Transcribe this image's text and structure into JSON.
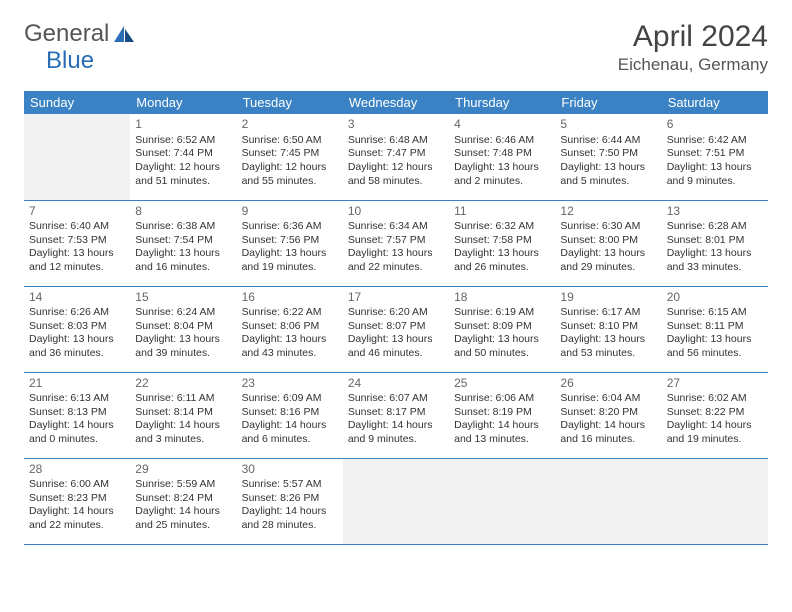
{
  "logo": {
    "part1": "General",
    "part2": "Blue"
  },
  "title": "April 2024",
  "location": "Eichenau, Germany",
  "colors": {
    "header_bg": "#3b82c4",
    "header_text": "#ffffff",
    "text": "#333333",
    "muted": "#666666",
    "logo_gray": "#555555",
    "logo_blue": "#2a6db5",
    "border": "#3b82c4",
    "empty_bg": "#f2f2f2",
    "page_bg": "#ffffff"
  },
  "day_headers": [
    "Sunday",
    "Monday",
    "Tuesday",
    "Wednesday",
    "Thursday",
    "Friday",
    "Saturday"
  ],
  "weeks": [
    [
      null,
      {
        "n": "1",
        "sr": "Sunrise: 6:52 AM",
        "ss": "Sunset: 7:44 PM",
        "dl": "Daylight: 12 hours and 51 minutes."
      },
      {
        "n": "2",
        "sr": "Sunrise: 6:50 AM",
        "ss": "Sunset: 7:45 PM",
        "dl": "Daylight: 12 hours and 55 minutes."
      },
      {
        "n": "3",
        "sr": "Sunrise: 6:48 AM",
        "ss": "Sunset: 7:47 PM",
        "dl": "Daylight: 12 hours and 58 minutes."
      },
      {
        "n": "4",
        "sr": "Sunrise: 6:46 AM",
        "ss": "Sunset: 7:48 PM",
        "dl": "Daylight: 13 hours and 2 minutes."
      },
      {
        "n": "5",
        "sr": "Sunrise: 6:44 AM",
        "ss": "Sunset: 7:50 PM",
        "dl": "Daylight: 13 hours and 5 minutes."
      },
      {
        "n": "6",
        "sr": "Sunrise: 6:42 AM",
        "ss": "Sunset: 7:51 PM",
        "dl": "Daylight: 13 hours and 9 minutes."
      }
    ],
    [
      {
        "n": "7",
        "sr": "Sunrise: 6:40 AM",
        "ss": "Sunset: 7:53 PM",
        "dl": "Daylight: 13 hours and 12 minutes."
      },
      {
        "n": "8",
        "sr": "Sunrise: 6:38 AM",
        "ss": "Sunset: 7:54 PM",
        "dl": "Daylight: 13 hours and 16 minutes."
      },
      {
        "n": "9",
        "sr": "Sunrise: 6:36 AM",
        "ss": "Sunset: 7:56 PM",
        "dl": "Daylight: 13 hours and 19 minutes."
      },
      {
        "n": "10",
        "sr": "Sunrise: 6:34 AM",
        "ss": "Sunset: 7:57 PM",
        "dl": "Daylight: 13 hours and 22 minutes."
      },
      {
        "n": "11",
        "sr": "Sunrise: 6:32 AM",
        "ss": "Sunset: 7:58 PM",
        "dl": "Daylight: 13 hours and 26 minutes."
      },
      {
        "n": "12",
        "sr": "Sunrise: 6:30 AM",
        "ss": "Sunset: 8:00 PM",
        "dl": "Daylight: 13 hours and 29 minutes."
      },
      {
        "n": "13",
        "sr": "Sunrise: 6:28 AM",
        "ss": "Sunset: 8:01 PM",
        "dl": "Daylight: 13 hours and 33 minutes."
      }
    ],
    [
      {
        "n": "14",
        "sr": "Sunrise: 6:26 AM",
        "ss": "Sunset: 8:03 PM",
        "dl": "Daylight: 13 hours and 36 minutes."
      },
      {
        "n": "15",
        "sr": "Sunrise: 6:24 AM",
        "ss": "Sunset: 8:04 PM",
        "dl": "Daylight: 13 hours and 39 minutes."
      },
      {
        "n": "16",
        "sr": "Sunrise: 6:22 AM",
        "ss": "Sunset: 8:06 PM",
        "dl": "Daylight: 13 hours and 43 minutes."
      },
      {
        "n": "17",
        "sr": "Sunrise: 6:20 AM",
        "ss": "Sunset: 8:07 PM",
        "dl": "Daylight: 13 hours and 46 minutes."
      },
      {
        "n": "18",
        "sr": "Sunrise: 6:19 AM",
        "ss": "Sunset: 8:09 PM",
        "dl": "Daylight: 13 hours and 50 minutes."
      },
      {
        "n": "19",
        "sr": "Sunrise: 6:17 AM",
        "ss": "Sunset: 8:10 PM",
        "dl": "Daylight: 13 hours and 53 minutes."
      },
      {
        "n": "20",
        "sr": "Sunrise: 6:15 AM",
        "ss": "Sunset: 8:11 PM",
        "dl": "Daylight: 13 hours and 56 minutes."
      }
    ],
    [
      {
        "n": "21",
        "sr": "Sunrise: 6:13 AM",
        "ss": "Sunset: 8:13 PM",
        "dl": "Daylight: 14 hours and 0 minutes."
      },
      {
        "n": "22",
        "sr": "Sunrise: 6:11 AM",
        "ss": "Sunset: 8:14 PM",
        "dl": "Daylight: 14 hours and 3 minutes."
      },
      {
        "n": "23",
        "sr": "Sunrise: 6:09 AM",
        "ss": "Sunset: 8:16 PM",
        "dl": "Daylight: 14 hours and 6 minutes."
      },
      {
        "n": "24",
        "sr": "Sunrise: 6:07 AM",
        "ss": "Sunset: 8:17 PM",
        "dl": "Daylight: 14 hours and 9 minutes."
      },
      {
        "n": "25",
        "sr": "Sunrise: 6:06 AM",
        "ss": "Sunset: 8:19 PM",
        "dl": "Daylight: 14 hours and 13 minutes."
      },
      {
        "n": "26",
        "sr": "Sunrise: 6:04 AM",
        "ss": "Sunset: 8:20 PM",
        "dl": "Daylight: 14 hours and 16 minutes."
      },
      {
        "n": "27",
        "sr": "Sunrise: 6:02 AM",
        "ss": "Sunset: 8:22 PM",
        "dl": "Daylight: 14 hours and 19 minutes."
      }
    ],
    [
      {
        "n": "28",
        "sr": "Sunrise: 6:00 AM",
        "ss": "Sunset: 8:23 PM",
        "dl": "Daylight: 14 hours and 22 minutes."
      },
      {
        "n": "29",
        "sr": "Sunrise: 5:59 AM",
        "ss": "Sunset: 8:24 PM",
        "dl": "Daylight: 14 hours and 25 minutes."
      },
      {
        "n": "30",
        "sr": "Sunrise: 5:57 AM",
        "ss": "Sunset: 8:26 PM",
        "dl": "Daylight: 14 hours and 28 minutes."
      },
      null,
      null,
      null,
      null
    ]
  ]
}
